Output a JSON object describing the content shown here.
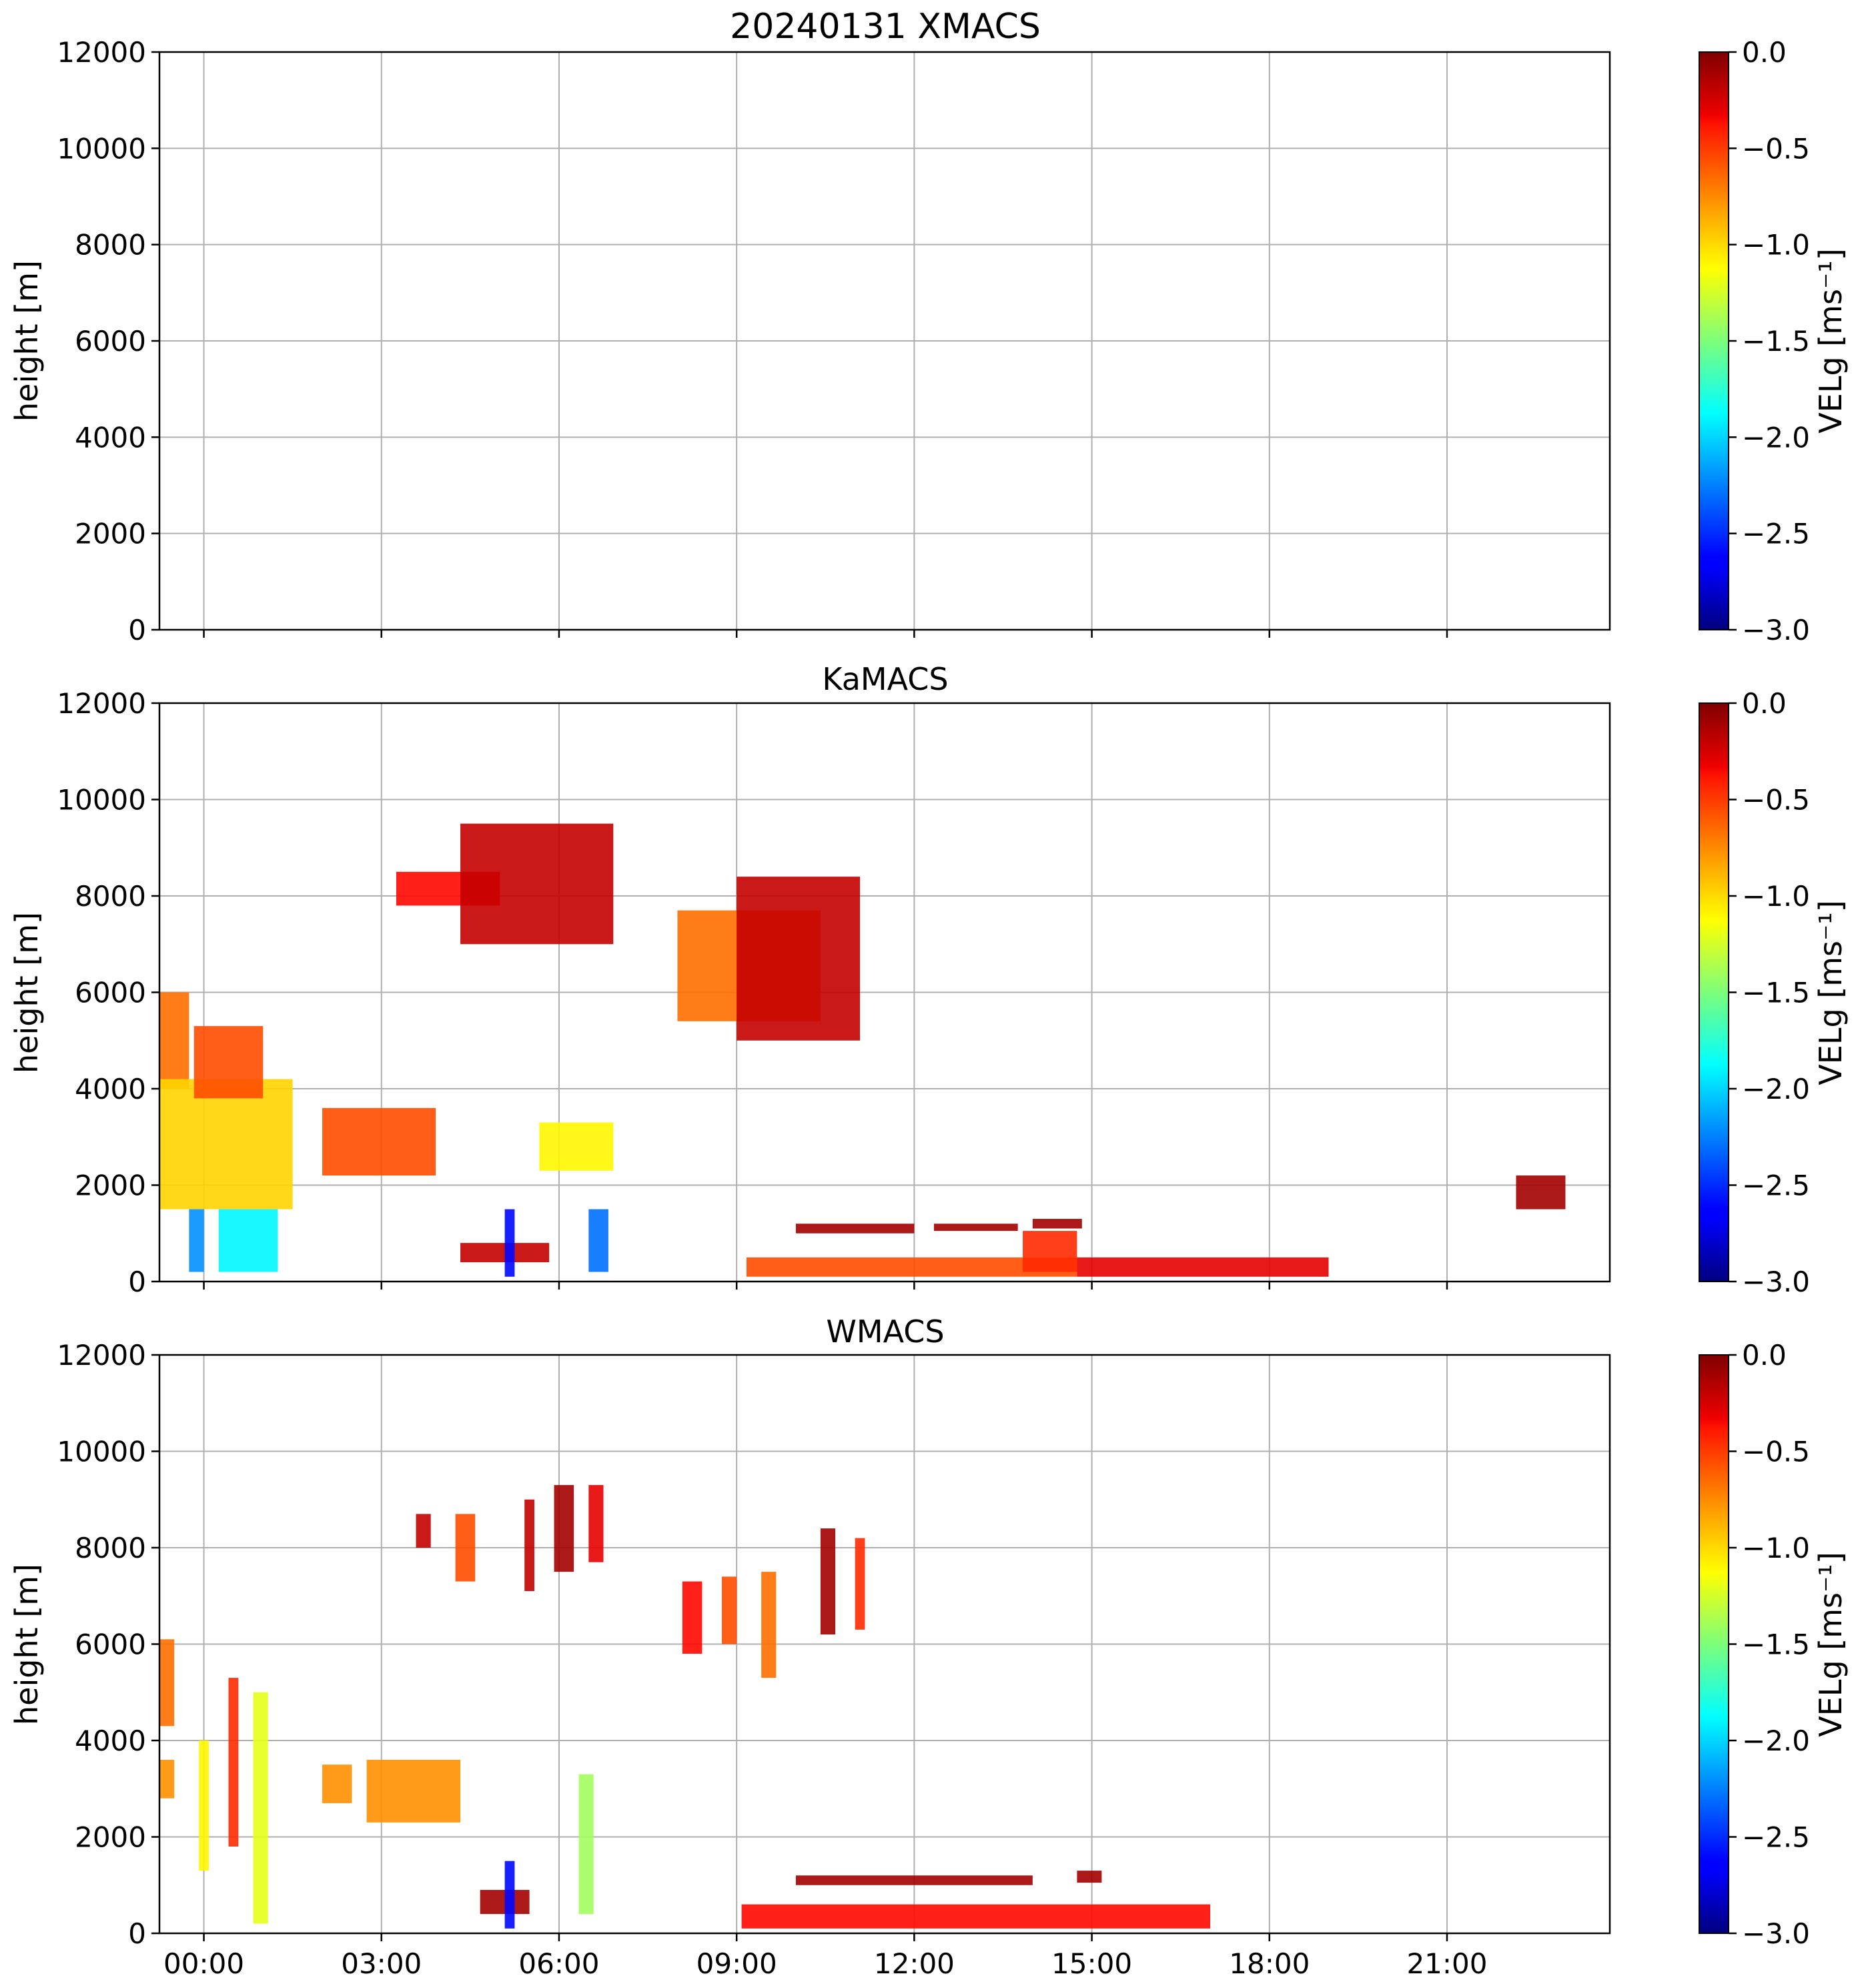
{
  "figure": {
    "panels": [
      {
        "title": "20240131 XMACS",
        "ylabel": "height [m]"
      },
      {
        "title": "KaMACS",
        "ylabel": "height [m]"
      },
      {
        "title": "WMACS",
        "ylabel": "height [m]"
      }
    ],
    "colorbar": {
      "label": "VELg [ms⁻¹]",
      "ticks": [
        "0.0",
        "−0.5",
        "−1.0",
        "−1.5",
        "−2.0",
        "−2.5",
        "−3.0"
      ],
      "colormap": "jet",
      "range": [
        -3.0,
        0.0
      ]
    },
    "yticks": [
      "0",
      "2000",
      "4000",
      "6000",
      "8000",
      "10000",
      "12000"
    ],
    "xticks": [
      "00:00",
      "03:00",
      "06:00",
      "09:00",
      "12:00",
      "15:00",
      "18:00",
      "21:00"
    ]
  },
  "chart_data": [
    {
      "type": "heatmap",
      "title": "20240131 XMACS",
      "xlabel": "",
      "ylabel": "height [m]",
      "xlim": [
        "-00:45",
        "23:45"
      ],
      "ylim": [
        0,
        12000
      ],
      "grid": true,
      "colorbar": {
        "label": "VELg [ms⁻¹]",
        "range": [
          -3.0,
          0.0
        ],
        "cmap": "jet"
      },
      "regions": []
    },
    {
      "type": "heatmap",
      "title": "KaMACS",
      "xlabel": "",
      "ylabel": "height [m]",
      "xlim": [
        "-00:45",
        "23:45"
      ],
      "ylim": [
        0,
        12000
      ],
      "grid": true,
      "colorbar": {
        "label": "VELg [ms⁻¹]",
        "range": [
          -3.0,
          0.0
        ],
        "cmap": "jet"
      },
      "regions": [
        {
          "time": [
            "-00:45",
            "-00:15"
          ],
          "height": [
            4000,
            6000
          ],
          "velg": -0.7
        },
        {
          "time": [
            "-00:45",
            "01:30"
          ],
          "height": [
            1500,
            4200
          ],
          "velg": -1.0
        },
        {
          "time": [
            "-00:10",
            "01:00"
          ],
          "height": [
            3800,
            5300
          ],
          "velg": -0.6
        },
        {
          "time": [
            "-00:15",
            "00:00"
          ],
          "height": [
            200,
            1500
          ],
          "velg": -2.2
        },
        {
          "time": [
            "00:15",
            "01:15"
          ],
          "height": [
            200,
            1500
          ],
          "velg": -1.9
        },
        {
          "time": [
            "02:00",
            "03:55"
          ],
          "height": [
            2200,
            3600
          ],
          "velg": -0.6
        },
        {
          "time": [
            "03:15",
            "05:00"
          ],
          "height": [
            7800,
            8500
          ],
          "velg": -0.4
        },
        {
          "time": [
            "04:20",
            "06:55"
          ],
          "height": [
            7000,
            9500
          ],
          "velg": -0.2
        },
        {
          "time": [
            "04:20",
            "05:50"
          ],
          "height": [
            400,
            800
          ],
          "velg": -0.2
        },
        {
          "time": [
            "05:05",
            "05:15"
          ],
          "height": [
            100,
            1500
          ],
          "velg": -2.6
        },
        {
          "time": [
            "05:40",
            "06:55"
          ],
          "height": [
            2300,
            3300
          ],
          "velg": -1.1
        },
        {
          "time": [
            "06:30",
            "06:50"
          ],
          "height": [
            200,
            1500
          ],
          "velg": -2.3
        },
        {
          "time": [
            "08:00",
            "10:25"
          ],
          "height": [
            5400,
            7700
          ],
          "velg": -0.7
        },
        {
          "time": [
            "09:00",
            "11:05"
          ],
          "height": [
            5000,
            8400
          ],
          "velg": -0.2
        },
        {
          "time": [
            "10:00",
            "12:00"
          ],
          "height": [
            1000,
            1200
          ],
          "velg": -0.1
        },
        {
          "time": [
            "12:20",
            "13:45"
          ],
          "height": [
            1050,
            1200
          ],
          "velg": -0.1
        },
        {
          "time": [
            "14:00",
            "14:50"
          ],
          "height": [
            1100,
            1300
          ],
          "velg": -0.1
        },
        {
          "time": [
            "09:10",
            "14:45"
          ],
          "height": [
            100,
            500
          ],
          "velg": -0.6
        },
        {
          "time": [
            "13:50",
            "14:45"
          ],
          "height": [
            200,
            1050
          ],
          "velg": -0.5
        },
        {
          "time": [
            "14:45",
            "19:00"
          ],
          "height": [
            100,
            500
          ],
          "velg": -0.3
        },
        {
          "time": [
            "22:10",
            "23:00"
          ],
          "height": [
            1500,
            2200
          ],
          "velg": -0.1
        }
      ]
    },
    {
      "type": "heatmap",
      "title": "WMACS",
      "xlabel": "",
      "ylabel": "height [m]",
      "xlim": [
        "-00:45",
        "23:45"
      ],
      "ylim": [
        0,
        12000
      ],
      "grid": true,
      "colorbar": {
        "label": "VELg [ms⁻¹]",
        "range": [
          -3.0,
          0.0
        ],
        "cmap": "jet"
      },
      "regions": [
        {
          "time": [
            "-00:45",
            "-00:30"
          ],
          "height": [
            4300,
            6100
          ],
          "velg": -0.7
        },
        {
          "time": [
            "-00:45",
            "-00:30"
          ],
          "height": [
            2800,
            3600
          ],
          "velg": -0.8
        },
        {
          "time": [
            "-00:05",
            "00:05"
          ],
          "height": [
            1300,
            4000
          ],
          "velg": -1.1
        },
        {
          "time": [
            "00:25",
            "00:35"
          ],
          "height": [
            1800,
            5300
          ],
          "velg": -0.5
        },
        {
          "time": [
            "00:50",
            "01:05"
          ],
          "height": [
            200,
            5000
          ],
          "velg": -1.2
        },
        {
          "time": [
            "02:00",
            "02:30"
          ],
          "height": [
            2700,
            3500
          ],
          "velg": -0.8
        },
        {
          "time": [
            "02:45",
            "04:20"
          ],
          "height": [
            2300,
            3600
          ],
          "velg": -0.8
        },
        {
          "time": [
            "03:35",
            "03:50"
          ],
          "height": [
            8000,
            8700
          ],
          "velg": -0.2
        },
        {
          "time": [
            "04:15",
            "04:35"
          ],
          "height": [
            7300,
            8700
          ],
          "velg": -0.6
        },
        {
          "time": [
            "05:25",
            "05:35"
          ],
          "height": [
            7100,
            9000
          ],
          "velg": -0.2
        },
        {
          "time": [
            "05:55",
            "06:15"
          ],
          "height": [
            7500,
            9300
          ],
          "velg": -0.1
        },
        {
          "time": [
            "06:30",
            "06:45"
          ],
          "height": [
            7700,
            9300
          ],
          "velg": -0.3
        },
        {
          "time": [
            "04:40",
            "05:30"
          ],
          "height": [
            400,
            900
          ],
          "velg": -0.1
        },
        {
          "time": [
            "05:05",
            "05:15"
          ],
          "height": [
            100,
            1500
          ],
          "velg": -2.6
        },
        {
          "time": [
            "06:20",
            "06:35"
          ],
          "height": [
            400,
            3300
          ],
          "velg": -1.4
        },
        {
          "time": [
            "08:05",
            "08:25"
          ],
          "height": [
            5800,
            7300
          ],
          "velg": -0.4
        },
        {
          "time": [
            "08:45",
            "09:00"
          ],
          "height": [
            6000,
            7400
          ],
          "velg": -0.6
        },
        {
          "time": [
            "09:25",
            "09:40"
          ],
          "height": [
            5300,
            7500
          ],
          "velg": -0.7
        },
        {
          "time": [
            "10:25",
            "10:40"
          ],
          "height": [
            6200,
            8400
          ],
          "velg": -0.1
        },
        {
          "time": [
            "11:00",
            "11:10"
          ],
          "height": [
            6300,
            8200
          ],
          "velg": -0.5
        },
        {
          "time": [
            "10:00",
            "14:00"
          ],
          "height": [
            1000,
            1200
          ],
          "velg": -0.1
        },
        {
          "time": [
            "14:45",
            "15:10"
          ],
          "height": [
            1050,
            1300
          ],
          "velg": -0.1
        },
        {
          "time": [
            "09:05",
            "17:00"
          ],
          "height": [
            100,
            600
          ],
          "velg": -0.4
        }
      ]
    }
  ]
}
